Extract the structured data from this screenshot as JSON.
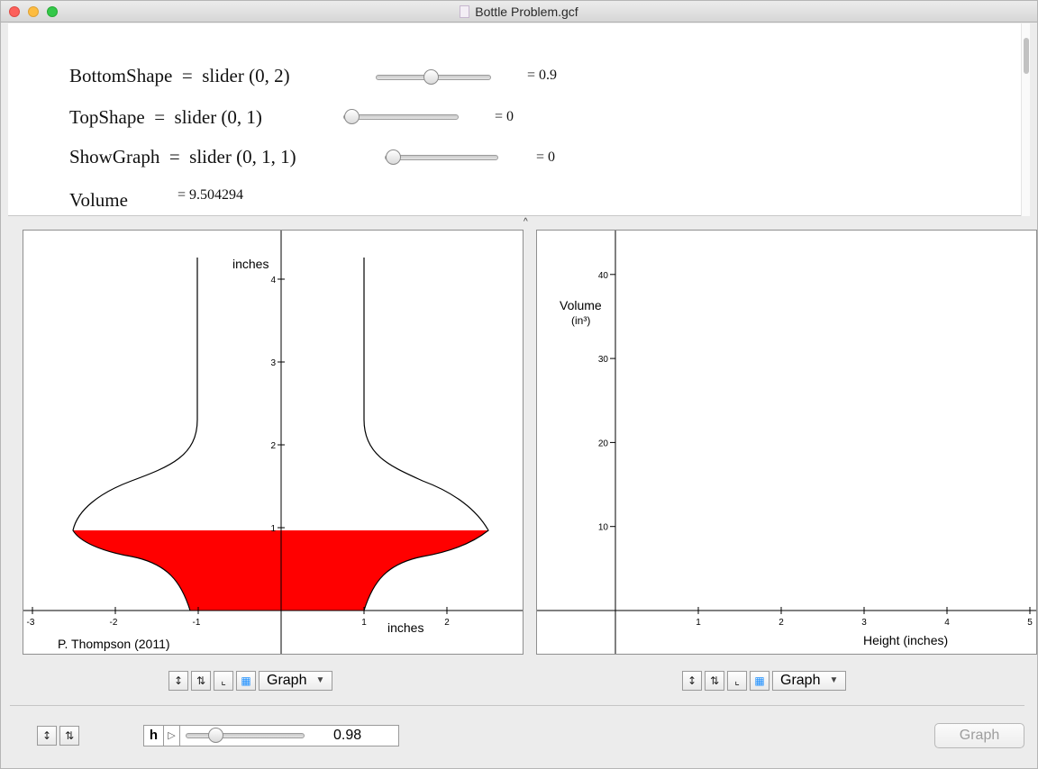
{
  "window": {
    "title": "Bottle Problem.gcf"
  },
  "equations": [
    {
      "lhs": "BottomShape",
      "rhs": "slider (0, 2)",
      "value": "= 0.9",
      "slider_fraction": 0.45
    },
    {
      "lhs": "TopShape",
      "rhs": "slider (0, 1)",
      "value": "= 0",
      "slider_fraction": 0.0
    },
    {
      "lhs": "ShowGraph",
      "rhs": "slider (0, 1, 1)",
      "value": "= 0",
      "slider_fraction": 0.0
    },
    {
      "lhs": "Volume",
      "rhs": "",
      "value": "= 9.504294"
    }
  ],
  "left_graph": {
    "y_label": "inches",
    "x_label": "inches",
    "credit": "P. Thompson (2011)",
    "x_ticks": [
      "-3",
      "-2",
      "-1",
      "1",
      "2"
    ],
    "y_ticks": [
      "1",
      "2",
      "3",
      "4"
    ],
    "fill_color": "#ff0000",
    "fill_height": 1.0
  },
  "right_graph": {
    "y_label_line1": "Volume",
    "y_label_line2": "(in³)",
    "x_label": "Height (inches)",
    "x_ticks": [
      "1",
      "2",
      "3",
      "4",
      "5"
    ],
    "y_ticks": [
      "10",
      "20",
      "30",
      "40"
    ]
  },
  "toolbar": {
    "zoom_in_icon": "zoom-in-icon",
    "zoom_out_icon": "zoom-out-icon",
    "axes_icon": "axes-icon",
    "grid_icon": "grid-icon",
    "mode_label": "Graph"
  },
  "animation": {
    "variable": "h",
    "value": "0.98",
    "slider_fraction": 0.25
  },
  "graph_button_label": "Graph"
}
